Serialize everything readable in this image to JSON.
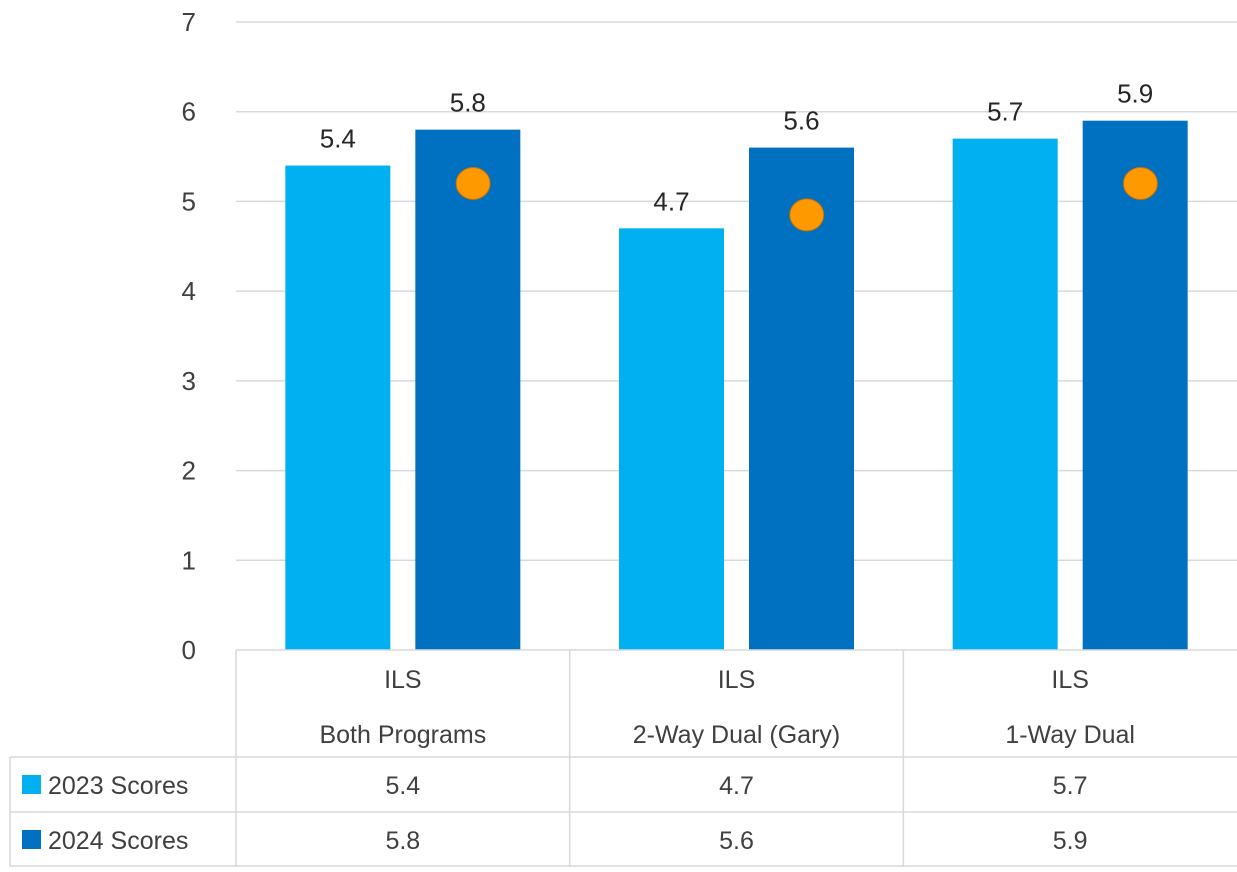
{
  "chart_data": {
    "type": "bar",
    "categories": [
      {
        "line1": "ILS",
        "line2": "Both Programs"
      },
      {
        "line1": "ILS",
        "line2": "2-Way Dual (Gary)"
      },
      {
        "line1": "ILS",
        "line2": "1-Way Dual"
      }
    ],
    "series": [
      {
        "name": "2023 Scores",
        "values": [
          5.4,
          4.7,
          5.7
        ],
        "labels": [
          "5.4",
          "4.7",
          "5.7"
        ],
        "color": "#00b0f0"
      },
      {
        "name": "2024 Scores",
        "values": [
          5.8,
          5.6,
          5.9
        ],
        "labels": [
          "5.8",
          "5.6",
          "5.9"
        ],
        "color": "#0070c0"
      }
    ],
    "markers": {
      "values": [
        5.2,
        4.85,
        5.2
      ],
      "color": "#ff9900"
    },
    "yticks": [
      "0",
      "1",
      "2",
      "3",
      "4",
      "5",
      "6",
      "7"
    ],
    "ylim": [
      0,
      7
    ],
    "grid": true,
    "legend": "data-table-bottom",
    "title": "",
    "xlabel": "",
    "ylabel": ""
  }
}
